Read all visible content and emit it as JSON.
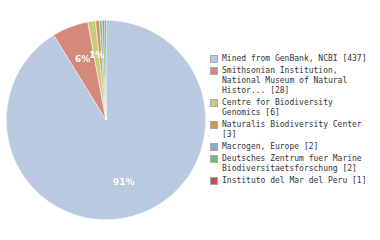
{
  "chart_data": {
    "type": "pie",
    "categories": [
      "Mined from GenBank, NCBI [437]",
      "Smithsonian Institution,\nNational Museum of Natural\nHistor... [28]",
      "Centre for Biodiversity\nGenomics [6]",
      "Naturalis Biodiversity Center [3]",
      "Macrogen, Europe [2]",
      "Deutsches Zentrum fuer Marine\nBiodiversitaetsforschung [2]",
      "Instituto del Mar del Peru [1]"
    ],
    "values": [
      91.23,
      5.85,
      1.25,
      0.63,
      0.42,
      0.42,
      0.21
    ],
    "value_labels": [
      "91%",
      "6%",
      "1%",
      null,
      null,
      null,
      null
    ],
    "colors": [
      "#b8c9e0",
      "#d4897a",
      "#c8cc7a",
      "#d4974a",
      "#8aaac8",
      "#78b870",
      "#c85050"
    ],
    "data_labels": true,
    "legend": "right"
  }
}
